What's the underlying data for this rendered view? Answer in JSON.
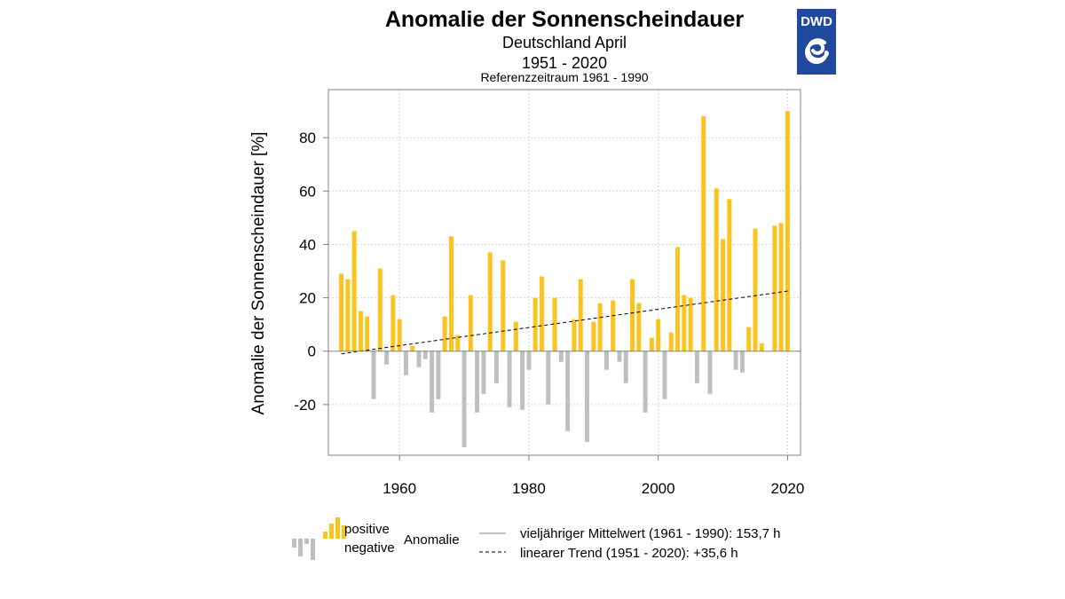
{
  "header": {
    "title": "Anomalie der Sonnenscheindauer",
    "subtitle": "Deutschland April",
    "period": "1951 - 2020",
    "reference": "Referenzzeitraum 1961 - 1990",
    "logo_text": "DWD"
  },
  "colors": {
    "positive": "#fbc31d",
    "negative": "#bfbfbf",
    "grid": "#d6d6d6",
    "axis": "#808080",
    "logo_bg": "#1f4aa0"
  },
  "legend": {
    "positive": "positive",
    "negative": "negative",
    "anomalie": "Anomalie",
    "mean": "vieljähriger Mittelwert (1961 - 1990): 153,7 h",
    "trend": "linearer Trend (1951 - 2020): +35,6 h"
  },
  "chart_data": {
    "type": "bar",
    "title": "Anomalie der Sonnenscheindauer",
    "xlabel": "",
    "ylabel": "Anomalie der Sonnenscheindauer [%]",
    "xlim": [
      1949,
      2022
    ],
    "ylim": [
      -39,
      98
    ],
    "xticks": [
      1960,
      1980,
      2000,
      2020
    ],
    "yticks": [
      -20,
      0,
      20,
      40,
      60,
      80
    ],
    "grid": true,
    "years": [
      1951,
      1952,
      1953,
      1954,
      1955,
      1956,
      1957,
      1958,
      1959,
      1960,
      1961,
      1962,
      1963,
      1964,
      1965,
      1966,
      1967,
      1968,
      1969,
      1970,
      1971,
      1972,
      1973,
      1974,
      1975,
      1976,
      1977,
      1978,
      1979,
      1980,
      1981,
      1982,
      1983,
      1984,
      1985,
      1986,
      1987,
      1988,
      1989,
      1990,
      1991,
      1992,
      1993,
      1994,
      1995,
      1996,
      1997,
      1998,
      1999,
      2000,
      2001,
      2002,
      2003,
      2004,
      2005,
      2006,
      2007,
      2008,
      2009,
      2010,
      2011,
      2012,
      2013,
      2014,
      2015,
      2016,
      2017,
      2018,
      2019,
      2020
    ],
    "values": [
      29,
      27,
      45,
      15,
      13,
      -18,
      31,
      -5,
      21,
      12,
      -9,
      2,
      -6,
      -3,
      -23,
      -18,
      13,
      43,
      6,
      -36,
      21,
      -23,
      -16,
      37,
      -12,
      34,
      -21,
      11,
      -22,
      -7,
      20,
      28,
      -20,
      20,
      -4,
      -30,
      12,
      27,
      -34,
      11,
      18,
      -7,
      19,
      -4,
      -12,
      27,
      18,
      -23,
      5,
      12,
      -18,
      7,
      39,
      21,
      20,
      -12,
      88,
      -16,
      61,
      42,
      57,
      -7,
      -8,
      9,
      46,
      3,
      0,
      47,
      48,
      90
    ],
    "trend": {
      "start_year": 1951,
      "start_value": -1,
      "end_year": 2020,
      "end_value": 22.5
    }
  }
}
